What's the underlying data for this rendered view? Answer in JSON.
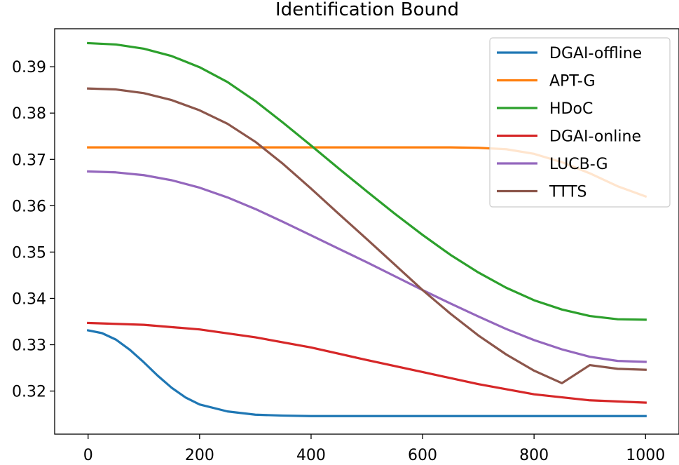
{
  "chart_data": {
    "type": "line",
    "title": "Identification Bound",
    "xlabel": "",
    "ylabel": "",
    "xlim": [
      -60,
      1060
    ],
    "ylim": [
      0.3107,
      0.3982
    ],
    "x_ticks": [
      0,
      200,
      400,
      600,
      800,
      1000
    ],
    "x_tick_labels": [
      "0",
      "200",
      "400",
      "600",
      "800",
      "1000"
    ],
    "y_ticks": [
      0.32,
      0.33,
      0.34,
      0.35,
      0.36,
      0.37,
      0.38,
      0.39
    ],
    "y_tick_labels": [
      "0.32",
      "0.33",
      "0.34",
      "0.35",
      "0.36",
      "0.37",
      "0.38",
      "0.39"
    ],
    "legend_position": "top-right",
    "grid": false,
    "series": [
      {
        "name": "DGAI-offline",
        "color": "#1f77b4",
        "x": [
          0,
          25,
          50,
          75,
          100,
          125,
          150,
          175,
          200,
          250,
          300,
          350,
          400,
          500,
          600,
          700,
          800,
          900,
          1000
        ],
        "y": [
          0.3331,
          0.3325,
          0.3311,
          0.3289,
          0.3262,
          0.3233,
          0.3207,
          0.3186,
          0.3171,
          0.3156,
          0.3149,
          0.3147,
          0.3146,
          0.3146,
          0.3146,
          0.3146,
          0.3146,
          0.3146,
          0.3146
        ]
      },
      {
        "name": "APT-G",
        "color": "#ff7f0e",
        "x": [
          0,
          100,
          200,
          300,
          400,
          500,
          600,
          650,
          700,
          750,
          800,
          850,
          900,
          950,
          1000
        ],
        "y": [
          0.3726,
          0.3726,
          0.3726,
          0.3726,
          0.3726,
          0.3726,
          0.3726,
          0.3726,
          0.3725,
          0.3722,
          0.3712,
          0.3694,
          0.367,
          0.3642,
          0.362
        ]
      },
      {
        "name": "HDoC",
        "color": "#2ca02c",
        "x": [
          0,
          50,
          100,
          150,
          200,
          250,
          300,
          350,
          400,
          450,
          500,
          550,
          600,
          650,
          700,
          750,
          800,
          850,
          900,
          950,
          1000
        ],
        "y": [
          0.3951,
          0.3948,
          0.3939,
          0.3923,
          0.3899,
          0.3867,
          0.3826,
          0.3779,
          0.373,
          0.368,
          0.3631,
          0.3583,
          0.3537,
          0.3494,
          0.3456,
          0.3423,
          0.3396,
          0.3376,
          0.3362,
          0.3355,
          0.3354
        ]
      },
      {
        "name": "DGAI-online",
        "color": "#d62728",
        "x": [
          0,
          100,
          200,
          300,
          400,
          500,
          600,
          700,
          800,
          900,
          1000
        ],
        "y": [
          0.3347,
          0.3343,
          0.3333,
          0.3316,
          0.3294,
          0.3267,
          0.3241,
          0.3215,
          0.3193,
          0.318,
          0.3175
        ]
      },
      {
        "name": "LUCB-G",
        "color": "#9467bd",
        "x": [
          0,
          50,
          100,
          150,
          200,
          250,
          300,
          350,
          400,
          450,
          500,
          550,
          600,
          650,
          700,
          750,
          800,
          850,
          900,
          950,
          1000
        ],
        "y": [
          0.3674,
          0.3672,
          0.3666,
          0.3655,
          0.3639,
          0.3618,
          0.3593,
          0.3565,
          0.3536,
          0.3507,
          0.3478,
          0.3448,
          0.3418,
          0.3389,
          0.3361,
          0.3334,
          0.331,
          0.329,
          0.3274,
          0.3265,
          0.3263
        ]
      },
      {
        "name": "TTTS",
        "color": "#8c564b",
        "x": [
          0,
          50,
          100,
          150,
          200,
          250,
          300,
          350,
          400,
          450,
          500,
          550,
          600,
          650,
          700,
          750,
          800,
          850,
          900,
          950,
          1000
        ],
        "y": [
          0.3853,
          0.3851,
          0.3843,
          0.3828,
          0.3806,
          0.3777,
          0.3738,
          0.369,
          0.3637,
          0.3582,
          0.3528,
          0.3473,
          0.3418,
          0.3367,
          0.332,
          0.3279,
          0.3244,
          0.3217,
          0.3256,
          0.3248,
          0.3246
        ]
      }
    ]
  }
}
